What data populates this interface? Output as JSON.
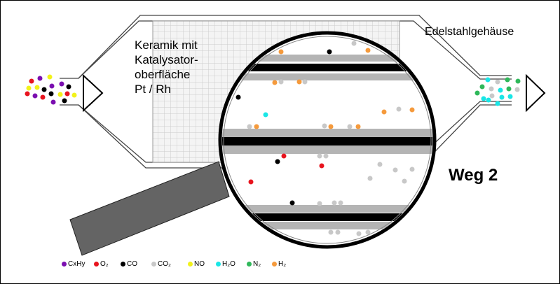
{
  "labels": {
    "ceramic": [
      "Keramik mit",
      "Katalysator-",
      "oberfläche",
      "Pt / Rh"
    ],
    "housing": "Edelstahlgehäuse",
    "path": "Weg 2"
  },
  "colors": {
    "CxHy": "#7b0fb0",
    "O2": "#e8141e",
    "CO": "#000000",
    "CO2": "#c8c8c8",
    "NO": "#f2f21a",
    "H2O": "#19e6e6",
    "N2": "#2fb85a",
    "H2": "#f59a3c",
    "channel_gray": "#b4b4b4",
    "handle": "#646464"
  },
  "legend": [
    {
      "key": "CxHy",
      "text": "CxHy"
    },
    {
      "key": "O2",
      "text": "O₂"
    },
    {
      "key": "CO",
      "text": "CO"
    },
    {
      "key": "CO2",
      "text": "CO₂"
    },
    {
      "key": "NO",
      "text": "NO"
    },
    {
      "key": "H2O",
      "text": "H₂O"
    },
    {
      "key": "N2",
      "text": "N₂"
    },
    {
      "key": "H2",
      "text": "H₂"
    }
  ]
}
